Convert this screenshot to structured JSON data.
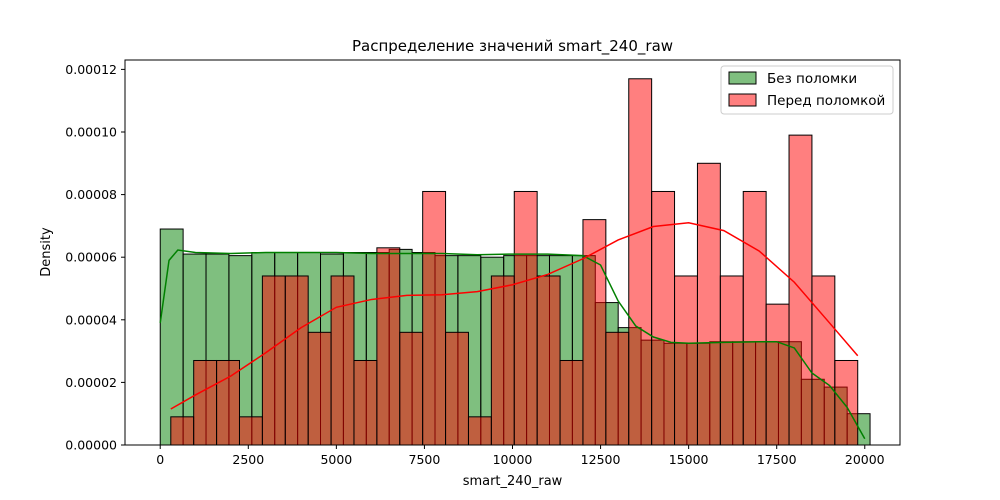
{
  "chart_data": {
    "type": "histogram",
    "title": "Распределение значений smart_240_raw",
    "xlabel": "smart_240_raw",
    "ylabel": "Density",
    "xlim": [
      -1000,
      21000
    ],
    "ylim": [
      0,
      0.000123
    ],
    "xticks": [
      0,
      2500,
      5000,
      7500,
      10000,
      12500,
      15000,
      17500,
      20000
    ],
    "xtick_labels": [
      "0",
      "2500",
      "5000",
      "7500",
      "10000",
      "12500",
      "15000",
      "17500",
      "20000"
    ],
    "yticks": [
      0,
      2e-05,
      4e-05,
      6e-05,
      8e-05,
      0.0001,
      0.00012
    ],
    "ytick_labels": [
      "0.00000",
      "0.00002",
      "0.00004",
      "0.00006",
      "0.00008",
      "0.00010",
      "0.00012"
    ],
    "grid": false,
    "legend_position": "top-right",
    "series": [
      {
        "name": "Без поломки",
        "fill": "#008000",
        "fill_opacity": 0.5,
        "line_color": "#008000",
        "bin_edges": [
          0,
          650,
          1300,
          1950,
          2600,
          3250,
          3900,
          4550,
          5200,
          5850,
          6500,
          7150,
          7800,
          8450,
          9100,
          9750,
          10400,
          11050,
          11700,
          12350,
          13000,
          13650,
          14300,
          14950,
          15600,
          16250,
          16900,
          17550,
          18200,
          18850,
          19500,
          20150
        ],
        "values": [
          6.9e-05,
          6.1e-05,
          6.1e-05,
          6.05e-05,
          6.15e-05,
          6.15e-05,
          6.15e-05,
          6.1e-05,
          6.15e-05,
          6.15e-05,
          6.25e-05,
          6.15e-05,
          6.05e-05,
          6.05e-05,
          6e-05,
          6.05e-05,
          6.05e-05,
          6.05e-05,
          6.05e-05,
          4.55e-05,
          3.75e-05,
          3.35e-05,
          3.25e-05,
          3.25e-05,
          3.3e-05,
          3.3e-05,
          3.3e-05,
          3.3e-05,
          2.1e-05,
          1.85e-05,
          1e-05
        ],
        "kde": {
          "x": [
            0,
            250,
            500,
            1000,
            2000,
            3000,
            4000,
            5000,
            6000,
            7000,
            8000,
            9000,
            10000,
            11000,
            12000,
            12500,
            13000,
            13500,
            14000,
            14500,
            15000,
            16000,
            17000,
            17500,
            18000,
            18500,
            19000,
            19500,
            20000
          ],
          "y": [
            3.9e-05,
            5.9e-05,
            6.23e-05,
            6.15e-05,
            6.12e-05,
            6.15e-05,
            6.15e-05,
            6.15e-05,
            6.12e-05,
            6.12e-05,
            6.12e-05,
            6.08e-05,
            6.1e-05,
            6.1e-05,
            6.05e-05,
            5.75e-05,
            4.6e-05,
            3.8e-05,
            3.45e-05,
            3.28e-05,
            3.25e-05,
            3.28e-05,
            3.3e-05,
            3.3e-05,
            3.1e-05,
            2.3e-05,
            1.9e-05,
            1.2e-05,
            2e-06
          ]
        }
      },
      {
        "name": "Перед поломкой",
        "fill": "#ff0000",
        "fill_opacity": 0.5,
        "line_color": "#ff0000",
        "bin_edges": [
          300,
          950,
          1600,
          2250,
          2900,
          3550,
          4200,
          4850,
          5500,
          6150,
          6800,
          7450,
          8100,
          8750,
          9400,
          10050,
          10700,
          11350,
          12000,
          12650,
          13300,
          13950,
          14600,
          15250,
          15900,
          16550,
          17200,
          17850,
          18500,
          19150,
          19800
        ],
        "values": [
          9e-06,
          2.7e-05,
          2.7e-05,
          9e-06,
          5.4e-05,
          5.4e-05,
          3.6e-05,
          5.4e-05,
          2.7e-05,
          6.3e-05,
          3.6e-05,
          8.1e-05,
          3.6e-05,
          9e-06,
          5.4e-05,
          8.1e-05,
          5.4e-05,
          2.7e-05,
          7.2e-05,
          3.6e-05,
          0.000117,
          8.1e-05,
          5.4e-05,
          9e-05,
          5.4e-05,
          8.1e-05,
          4.5e-05,
          9.9e-05,
          5.4e-05,
          2.7e-05
        ],
        "kde": {
          "x": [
            300,
            1000,
            2000,
            3000,
            4000,
            5000,
            6000,
            7000,
            8000,
            9000,
            10000,
            11000,
            12000,
            13000,
            14000,
            15000,
            16000,
            17000,
            18000,
            19000,
            19800
          ],
          "y": [
            1.15e-05,
            1.6e-05,
            2.2e-05,
            2.95e-05,
            3.75e-05,
            4.4e-05,
            4.65e-05,
            4.78e-05,
            4.8e-05,
            4.9e-05,
            5.12e-05,
            5.45e-05,
            5.95e-05,
            6.55e-05,
            6.98e-05,
            7.1e-05,
            6.85e-05,
            6.2e-05,
            5.2e-05,
            3.9e-05,
            2.85e-05
          ]
        }
      }
    ]
  }
}
